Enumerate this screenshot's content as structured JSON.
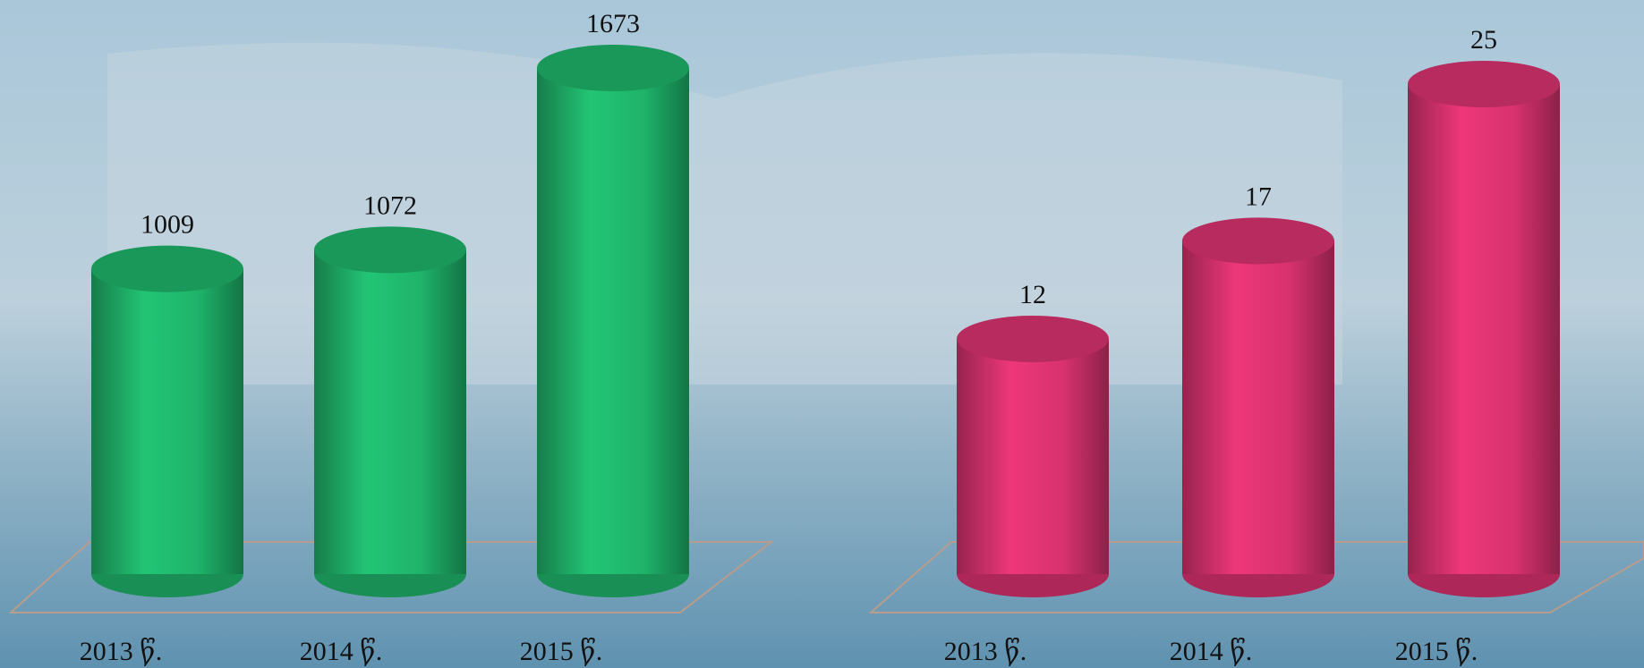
{
  "chart_data": [
    {
      "type": "cylinder",
      "categories": [
        "2013 წ.",
        "2014 წ.",
        "2015 წ."
      ],
      "values": [
        1009,
        1072,
        1673
      ],
      "color": "#1fb36a"
    },
    {
      "type": "cylinder",
      "categories": [
        "2013 წ.",
        "2014 წ.",
        "2015 წ."
      ],
      "values": [
        12,
        17,
        25
      ],
      "color": "#d8326e"
    }
  ]
}
